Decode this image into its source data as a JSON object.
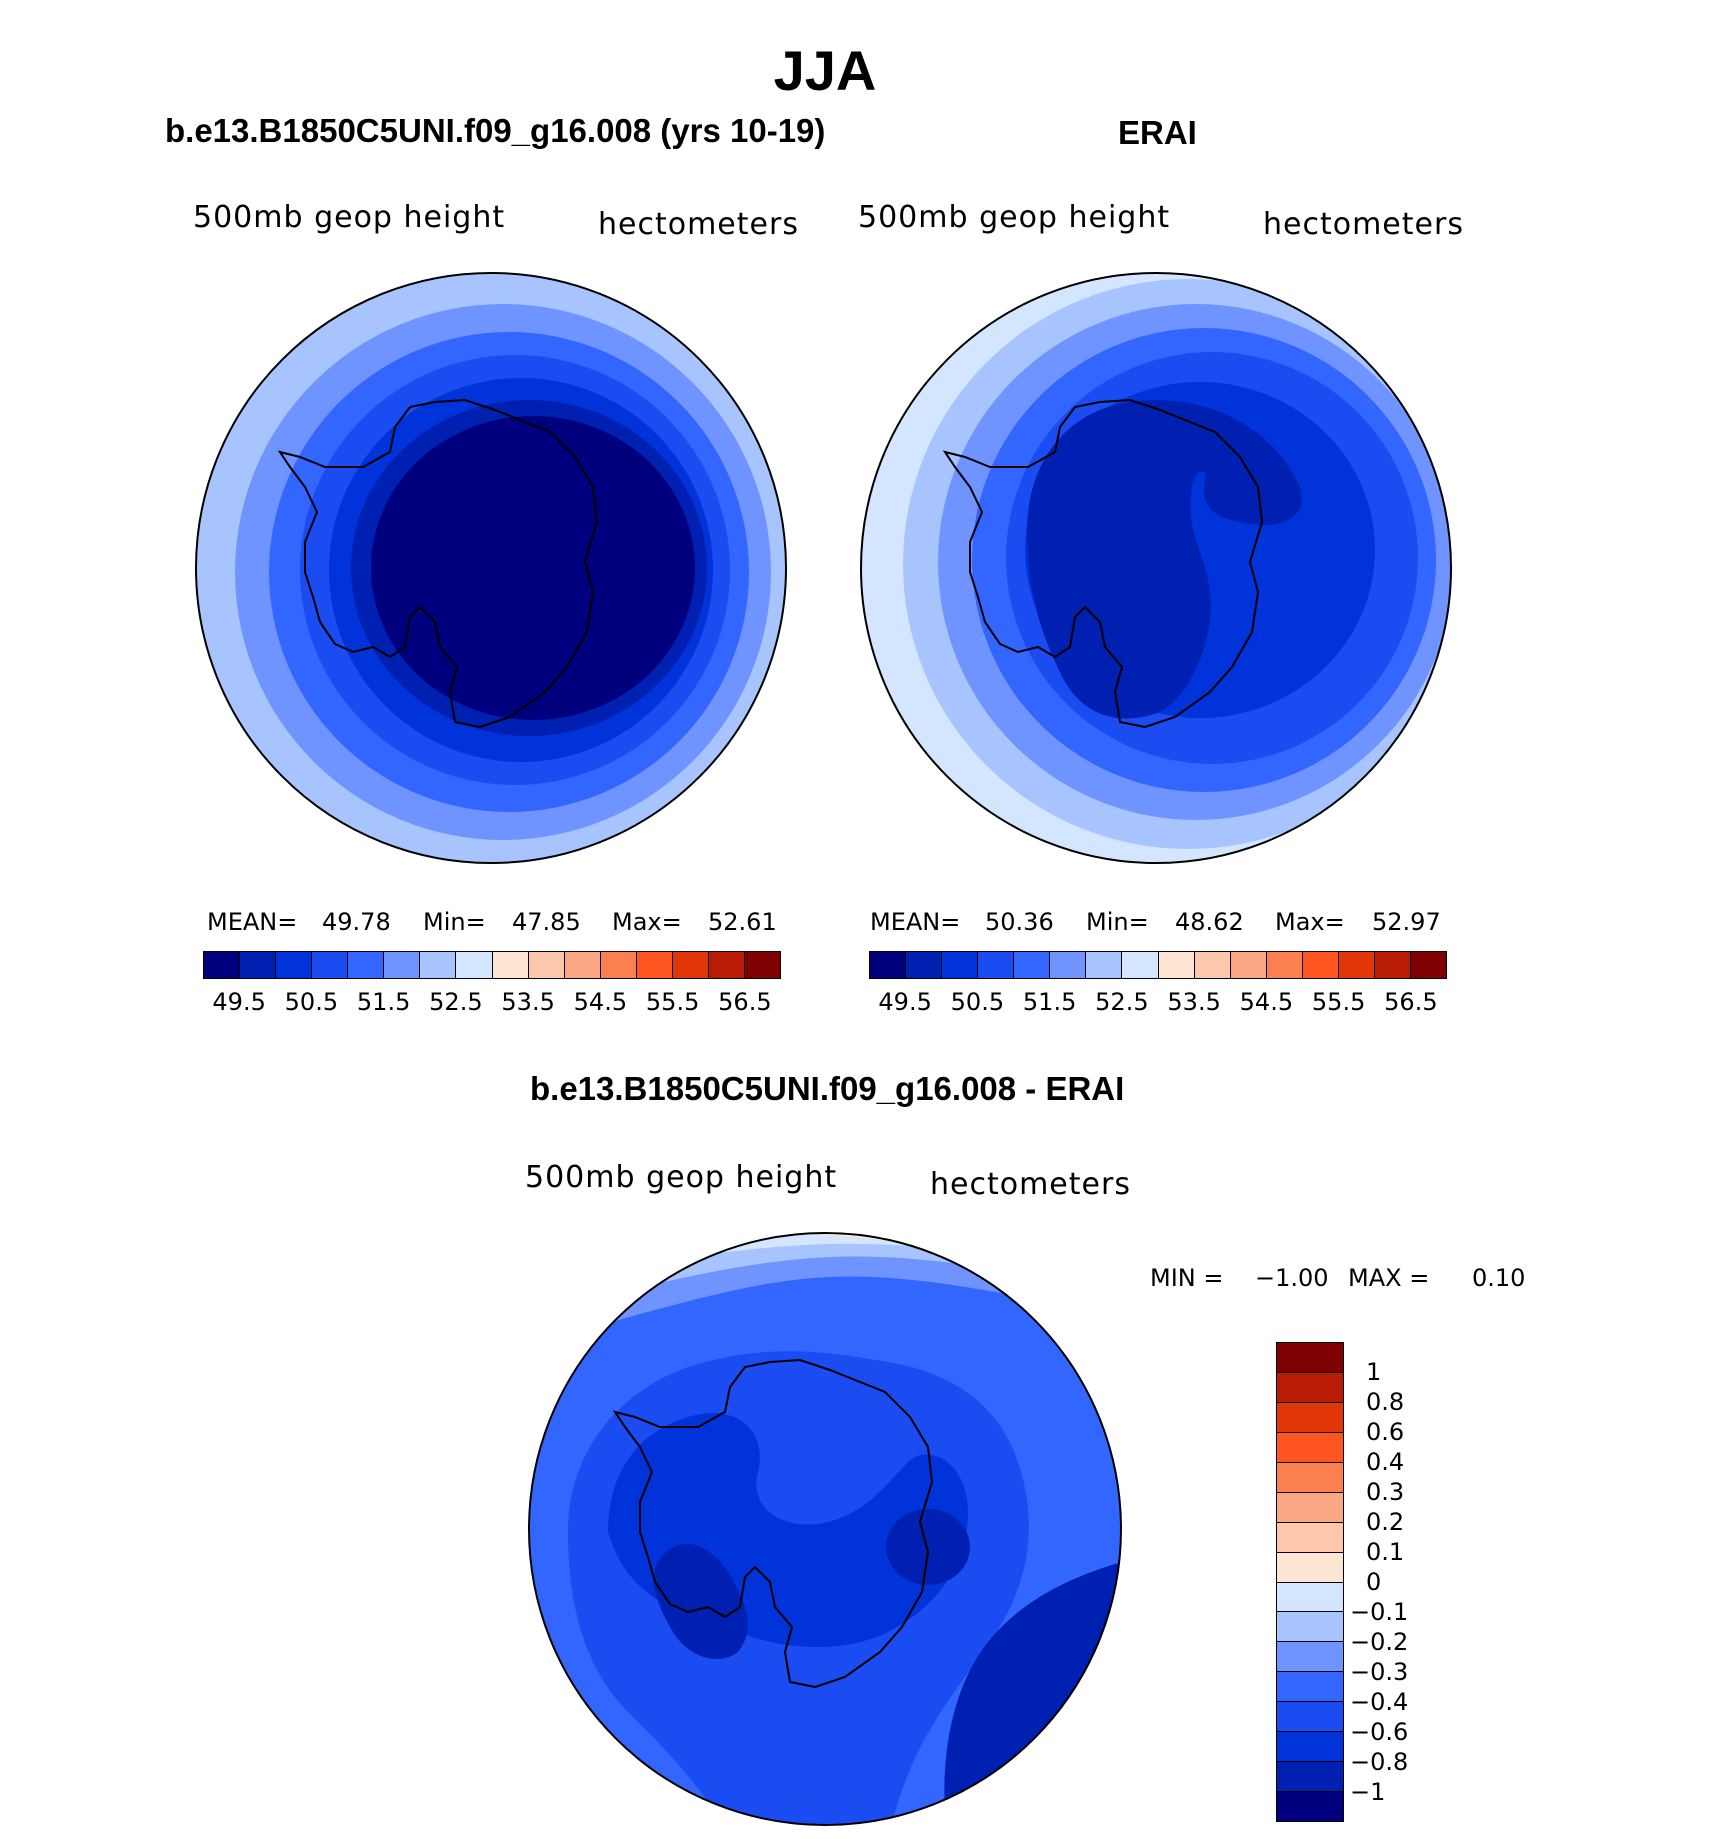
{
  "title": "JJA",
  "colors": {
    "abs_scale": [
      "#00007f",
      "#0020b2",
      "#0033d9",
      "#1a4cf2",
      "#3366ff",
      "#6f94ff",
      "#a8c4ff",
      "#d4e6ff",
      "#fde5d4",
      "#fcc7ab",
      "#fca784",
      "#fc7f50",
      "#ff5520",
      "#e03608",
      "#b81c04",
      "#7f0000"
    ],
    "diff_scale": [
      "#00007f",
      "#0020b2",
      "#0033d9",
      "#1a4cf2",
      "#3366ff",
      "#6f94ff",
      "#a8c4ff",
      "#d4e6ff",
      "#fde5d4",
      "#fcc7ab",
      "#fca784",
      "#fc7f50",
      "#ff5520",
      "#e03608",
      "#b81c04",
      "#7f0000"
    ]
  },
  "panels": {
    "model": {
      "title": "b.e13.B1850C5UNI.f09_g16.008 (yrs 10-19)",
      "left_label": "500mb geop height",
      "right_label": "hectometers",
      "mean_label": "MEAN=",
      "mean_value": "49.78",
      "min_label": "Min=",
      "min_value": "47.85",
      "max_label": "Max=",
      "max_value": "52.61",
      "ticks": [
        "49.5",
        "50.5",
        "51.5",
        "52.5",
        "53.5",
        "54.5",
        "55.5",
        "56.5"
      ],
      "icon": "antarctica-polar-map-icon"
    },
    "obs": {
      "title": "ERAI",
      "left_label": "500mb geop height",
      "right_label": "hectometers",
      "mean_label": "MEAN=",
      "mean_value": "50.36",
      "min_label": "Min=",
      "min_value": "48.62",
      "max_label": "Max=",
      "max_value": "52.97",
      "ticks": [
        "49.5",
        "50.5",
        "51.5",
        "52.5",
        "53.5",
        "54.5",
        "55.5",
        "56.5"
      ],
      "icon": "antarctica-polar-map-icon"
    },
    "diff": {
      "title": "b.e13.B1850C5UNI.f09_g16.008 - ERAI",
      "left_label": "500mb geop height",
      "right_label": "hectometers",
      "min_label": "MIN =",
      "min_value": "−1.00",
      "max_label": "MAX =",
      "max_value": "0.10",
      "ticks": [
        "1",
        "0.8",
        "0.6",
        "0.4",
        "0.3",
        "0.2",
        "0.1",
        "0",
        "−0.1",
        "−0.2",
        "−0.3",
        "−0.4",
        "−0.6",
        "−0.8",
        "−1"
      ],
      "icon": "antarctica-polar-map-icon"
    }
  }
}
